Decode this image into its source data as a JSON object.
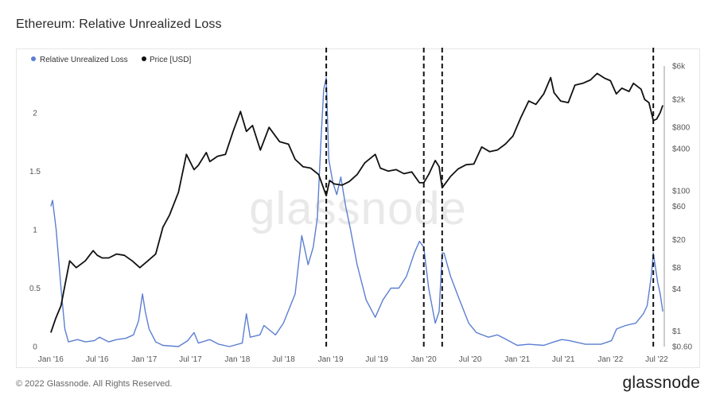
{
  "header": {
    "title": "Ethereum: Relative Unrealized Loss"
  },
  "footer": {
    "copyright": "© 2022 Glassnode. All Rights Reserved.",
    "logo_text": "glassnode"
  },
  "watermark": "glassnode",
  "colors": {
    "loss": "#5b7fd1",
    "price": "#111111",
    "event_line": "#111111",
    "axis_line": "#888888"
  },
  "chart_data": {
    "type": "line",
    "legend": [
      {
        "name": "Relative Unrealized Loss",
        "color": "#5b7fd1"
      },
      {
        "name": "Price [USD]",
        "color": "#111111"
      }
    ],
    "legend_position": "top-left",
    "grid": false,
    "x_range": [
      "2015-12-20",
      "2022-07-31"
    ],
    "x_ticks": [
      "Jan '16",
      "Jul '16",
      "Jan '17",
      "Jul '17",
      "Jan '18",
      "Jul '18",
      "Jan '19",
      "Jul '19",
      "Jan '20",
      "Jul '20",
      "Jan '21",
      "Jul '21",
      "Jan '22",
      "Jul '22"
    ],
    "y_left": {
      "min": 0,
      "max": 2.4,
      "ticks": [
        "0",
        "0.5",
        "1",
        "1.5",
        "2"
      ]
    },
    "y_right": {
      "scale": "log",
      "min": 0.6,
      "max": 6000,
      "ticks": [
        "$0.60",
        "$1",
        "$4",
        "$8",
        "$20",
        "$60",
        "$100",
        "$400",
        "$800",
        "$2k",
        "$6k"
      ]
    },
    "event_lines": [
      "2018-12-15",
      "2020-01-01",
      "2020-03-13",
      "2022-06-18"
    ],
    "series": [
      {
        "name": "Relative Unrealized Loss",
        "axis": "left",
        "points": [
          [
            "2016-01-01",
            1.2
          ],
          [
            "2016-01-08",
            1.25
          ],
          [
            "2016-01-22",
            1.0
          ],
          [
            "2016-02-10",
            0.5
          ],
          [
            "2016-02-25",
            0.15
          ],
          [
            "2016-03-10",
            0.04
          ],
          [
            "2016-04-15",
            0.06
          ],
          [
            "2016-05-15",
            0.04
          ],
          [
            "2016-06-20",
            0.05
          ],
          [
            "2016-07-10",
            0.08
          ],
          [
            "2016-08-15",
            0.04
          ],
          [
            "2016-09-15",
            0.06
          ],
          [
            "2016-10-20",
            0.07
          ],
          [
            "2016-11-20",
            0.1
          ],
          [
            "2016-12-10",
            0.22
          ],
          [
            "2016-12-25",
            0.45
          ],
          [
            "2017-01-05",
            0.3
          ],
          [
            "2017-01-20",
            0.15
          ],
          [
            "2017-02-15",
            0.04
          ],
          [
            "2017-03-15",
            0.01
          ],
          [
            "2017-05-15",
            0.0
          ],
          [
            "2017-06-20",
            0.05
          ],
          [
            "2017-07-15",
            0.12
          ],
          [
            "2017-08-01",
            0.03
          ],
          [
            "2017-09-15",
            0.06
          ],
          [
            "2017-10-20",
            0.02
          ],
          [
            "2017-12-01",
            0.0
          ],
          [
            "2018-01-20",
            0.03
          ],
          [
            "2018-02-05",
            0.28
          ],
          [
            "2018-02-20",
            0.08
          ],
          [
            "2018-03-30",
            0.1
          ],
          [
            "2018-04-15",
            0.18
          ],
          [
            "2018-05-30",
            0.1
          ],
          [
            "2018-06-30",
            0.2
          ],
          [
            "2018-08-15",
            0.45
          ],
          [
            "2018-09-10",
            0.95
          ],
          [
            "2018-10-05",
            0.7
          ],
          [
            "2018-10-25",
            0.85
          ],
          [
            "2018-11-10",
            1.1
          ],
          [
            "2018-11-25",
            1.8
          ],
          [
            "2018-12-05",
            2.2
          ],
          [
            "2018-12-15",
            2.3
          ],
          [
            "2018-12-25",
            1.6
          ],
          [
            "2019-01-10",
            1.4
          ],
          [
            "2019-01-25",
            1.3
          ],
          [
            "2019-02-10",
            1.45
          ],
          [
            "2019-03-01",
            1.2
          ],
          [
            "2019-03-20",
            1.0
          ],
          [
            "2019-04-15",
            0.7
          ],
          [
            "2019-05-20",
            0.4
          ],
          [
            "2019-06-25",
            0.25
          ],
          [
            "2019-07-25",
            0.4
          ],
          [
            "2019-08-25",
            0.5
          ],
          [
            "2019-09-25",
            0.5
          ],
          [
            "2019-10-25",
            0.6
          ],
          [
            "2019-11-25",
            0.8
          ],
          [
            "2019-12-15",
            0.9
          ],
          [
            "2020-01-01",
            0.85
          ],
          [
            "2020-01-20",
            0.5
          ],
          [
            "2020-02-15",
            0.2
          ],
          [
            "2020-03-01",
            0.3
          ],
          [
            "2020-03-13",
            0.8
          ],
          [
            "2020-03-20",
            0.8
          ],
          [
            "2020-04-15",
            0.6
          ],
          [
            "2020-05-20",
            0.4
          ],
          [
            "2020-06-25",
            0.2
          ],
          [
            "2020-07-25",
            0.12
          ],
          [
            "2020-09-10",
            0.08
          ],
          [
            "2020-10-15",
            0.1
          ],
          [
            "2020-11-20",
            0.06
          ],
          [
            "2021-01-01",
            0.01
          ],
          [
            "2021-02-15",
            0.02
          ],
          [
            "2021-04-15",
            0.01
          ],
          [
            "2021-05-25",
            0.04
          ],
          [
            "2021-06-25",
            0.06
          ],
          [
            "2021-07-25",
            0.05
          ],
          [
            "2021-09-25",
            0.02
          ],
          [
            "2021-11-25",
            0.02
          ],
          [
            "2022-01-05",
            0.05
          ],
          [
            "2022-01-25",
            0.15
          ],
          [
            "2022-03-01",
            0.18
          ],
          [
            "2022-04-10",
            0.2
          ],
          [
            "2022-05-10",
            0.28
          ],
          [
            "2022-05-25",
            0.35
          ],
          [
            "2022-06-10",
            0.6
          ],
          [
            "2022-06-18",
            0.8
          ],
          [
            "2022-06-25",
            0.7
          ],
          [
            "2022-07-05",
            0.55
          ],
          [
            "2022-07-15",
            0.45
          ],
          [
            "2022-07-25",
            0.3
          ]
        ]
      },
      {
        "name": "Price [USD]",
        "axis": "right",
        "points": [
          [
            "2016-01-01",
            0.95
          ],
          [
            "2016-01-20",
            1.5
          ],
          [
            "2016-02-10",
            2.3
          ],
          [
            "2016-03-01",
            5.5
          ],
          [
            "2016-03-15",
            10
          ],
          [
            "2016-04-10",
            8
          ],
          [
            "2016-05-15",
            10
          ],
          [
            "2016-06-15",
            14
          ],
          [
            "2016-07-01",
            12
          ],
          [
            "2016-07-20",
            11
          ],
          [
            "2016-08-15",
            11
          ],
          [
            "2016-09-15",
            12.5
          ],
          [
            "2016-10-15",
            12
          ],
          [
            "2016-11-15",
            10
          ],
          [
            "2016-12-15",
            8
          ],
          [
            "2017-01-15",
            10
          ],
          [
            "2017-02-15",
            12.5
          ],
          [
            "2017-03-15",
            30
          ],
          [
            "2017-04-10",
            45
          ],
          [
            "2017-05-15",
            95
          ],
          [
            "2017-06-15",
            330
          ],
          [
            "2017-07-15",
            200
          ],
          [
            "2017-08-01",
            230
          ],
          [
            "2017-09-01",
            350
          ],
          [
            "2017-09-15",
            260
          ],
          [
            "2017-10-15",
            310
          ],
          [
            "2017-11-15",
            330
          ],
          [
            "2017-12-15",
            700
          ],
          [
            "2018-01-13",
            1350
          ],
          [
            "2018-02-05",
            700
          ],
          [
            "2018-03-01",
            850
          ],
          [
            "2018-04-01",
            380
          ],
          [
            "2018-05-05",
            800
          ],
          [
            "2018-06-15",
            500
          ],
          [
            "2018-07-20",
            460
          ],
          [
            "2018-08-15",
            280
          ],
          [
            "2018-09-15",
            220
          ],
          [
            "2018-10-15",
            210
          ],
          [
            "2018-11-15",
            170
          ],
          [
            "2018-12-15",
            85
          ],
          [
            "2018-12-28",
            140
          ],
          [
            "2019-01-15",
            125
          ],
          [
            "2019-02-15",
            120
          ],
          [
            "2019-03-15",
            135
          ],
          [
            "2019-04-15",
            170
          ],
          [
            "2019-05-15",
            250
          ],
          [
            "2019-06-25",
            330
          ],
          [
            "2019-07-15",
            210
          ],
          [
            "2019-08-15",
            190
          ],
          [
            "2019-09-15",
            200
          ],
          [
            "2019-10-15",
            175
          ],
          [
            "2019-11-15",
            185
          ],
          [
            "2019-12-15",
            130
          ],
          [
            "2020-01-01",
            130
          ],
          [
            "2020-01-20",
            170
          ],
          [
            "2020-02-15",
            270
          ],
          [
            "2020-03-01",
            220
          ],
          [
            "2020-03-13",
            110
          ],
          [
            "2020-04-15",
            160
          ],
          [
            "2020-05-15",
            205
          ],
          [
            "2020-06-15",
            235
          ],
          [
            "2020-07-15",
            240
          ],
          [
            "2020-08-15",
            420
          ],
          [
            "2020-09-15",
            360
          ],
          [
            "2020-10-15",
            380
          ],
          [
            "2020-11-15",
            460
          ],
          [
            "2020-12-15",
            600
          ],
          [
            "2021-01-15",
            1100
          ],
          [
            "2021-02-15",
            1900
          ],
          [
            "2021-03-15",
            1700
          ],
          [
            "2021-04-15",
            2400
          ],
          [
            "2021-05-12",
            4100
          ],
          [
            "2021-05-25",
            2500
          ],
          [
            "2021-06-20",
            1900
          ],
          [
            "2021-07-20",
            1800
          ],
          [
            "2021-08-15",
            3200
          ],
          [
            "2021-09-15",
            3400
          ],
          [
            "2021-10-15",
            3800
          ],
          [
            "2021-11-10",
            4700
          ],
          [
            "2021-12-10",
            4000
          ],
          [
            "2022-01-01",
            3700
          ],
          [
            "2022-01-24",
            2400
          ],
          [
            "2022-02-15",
            2900
          ],
          [
            "2022-03-15",
            2600
          ],
          [
            "2022-04-01",
            3400
          ],
          [
            "2022-05-01",
            2800
          ],
          [
            "2022-05-15",
            2000
          ],
          [
            "2022-06-01",
            1800
          ],
          [
            "2022-06-18",
            1000
          ],
          [
            "2022-07-01",
            1050
          ],
          [
            "2022-07-15",
            1300
          ],
          [
            "2022-07-25",
            1650
          ]
        ]
      }
    ]
  }
}
